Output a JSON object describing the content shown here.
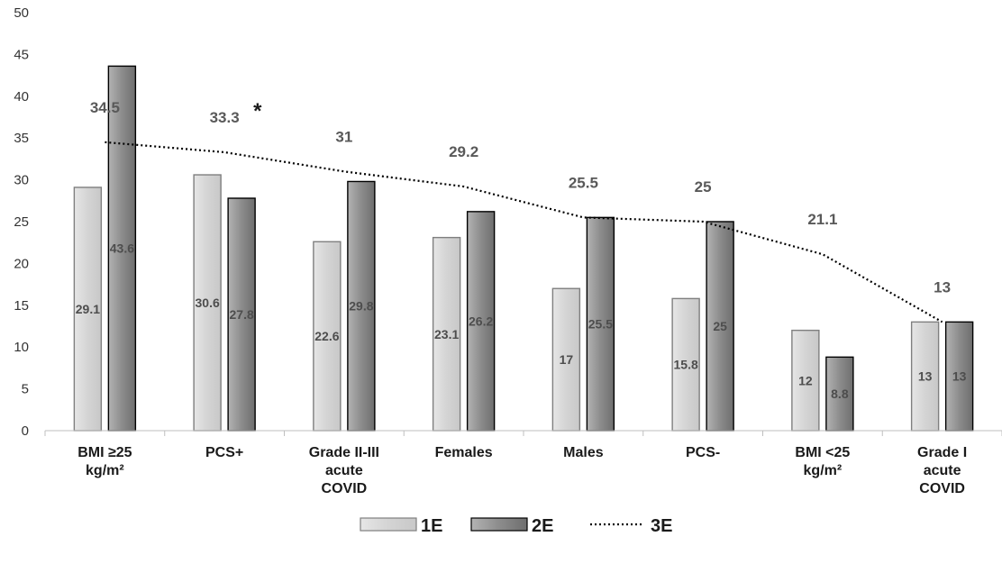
{
  "chart_data": {
    "type": "bar",
    "categories": [
      [
        "BMI ≥25",
        "kg/m²"
      ],
      [
        "PCS+"
      ],
      [
        "Grade II-III",
        "acute",
        "COVID"
      ],
      [
        "Females"
      ],
      [
        "Males"
      ],
      [
        "PCS-"
      ],
      [
        "BMI <25",
        "kg/m²"
      ],
      [
        "Grade I",
        "acute",
        "COVID"
      ]
    ],
    "series": [
      {
        "name": "1E",
        "kind": "bar",
        "color": "#d9d9d9",
        "values": [
          29.1,
          30.6,
          22.6,
          23.1,
          17,
          15.8,
          12,
          13
        ]
      },
      {
        "name": "2E",
        "kind": "bar",
        "color": "#8c8c8c",
        "values": [
          43.6,
          27.8,
          29.8,
          26.2,
          25.5,
          25,
          8.8,
          13
        ]
      },
      {
        "name": "3E",
        "kind": "line",
        "style": "dotted",
        "color": "#000000",
        "values": [
          34.5,
          33.3,
          31,
          29.2,
          25.5,
          25,
          21.1,
          13
        ]
      }
    ],
    "annotations": [
      {
        "category_index": 1,
        "series": "3E",
        "text": "*"
      }
    ],
    "ylim": [
      0,
      50
    ],
    "yticks": [
      0,
      5,
      10,
      15,
      20,
      25,
      30,
      35,
      40,
      45,
      50
    ],
    "grid": false,
    "legend": "bottom",
    "xlabel": "",
    "ylabel": ""
  }
}
